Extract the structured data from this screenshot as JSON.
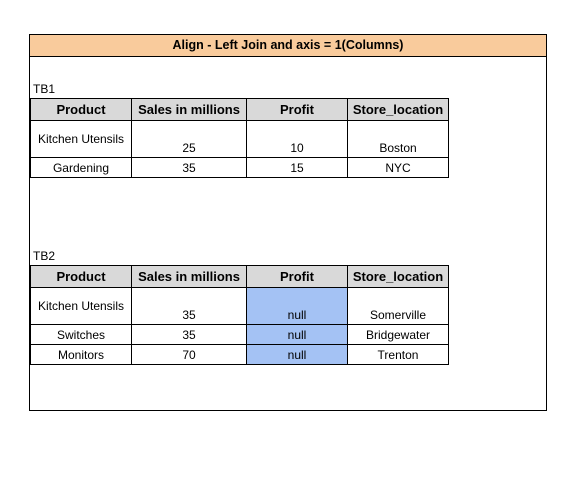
{
  "title": "Align - Left Join and axis = 1(Columns)",
  "tb1": {
    "label": "TB1",
    "headers": [
      "Product",
      "Sales in millions",
      "Profit",
      "Store_location"
    ],
    "rows": [
      [
        "Kitchen Utensils",
        "25",
        "10",
        "Boston"
      ],
      [
        "Gardening",
        "35",
        "15",
        "NYC"
      ]
    ]
  },
  "tb2": {
    "label": "TB2",
    "headers": [
      "Product",
      "Sales in millions",
      "Profit",
      "Store_location"
    ],
    "rows": [
      [
        "Kitchen Utensils",
        "35",
        "null",
        "Somerville"
      ],
      [
        "Switches",
        "35",
        "null",
        "Bridgewater"
      ],
      [
        "Monitors",
        "70",
        "null",
        "Trenton"
      ]
    ]
  },
  "colors": {
    "banner": "#f9cb9c",
    "header_bg": "#d9d9d9",
    "null_highlight": "#a4c2f4"
  }
}
